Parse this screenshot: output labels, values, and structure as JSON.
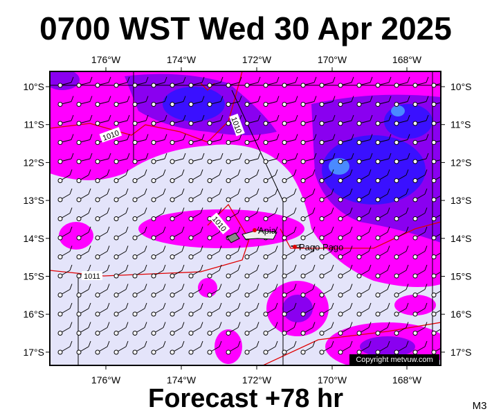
{
  "header": {
    "title": "0700 WST Wed 30 Apr 2025"
  },
  "map": {
    "longitude_labels": [
      "176°W",
      "174°W",
      "172°W",
      "170°W",
      "168°W"
    ],
    "latitude_labels": [
      "10°S",
      "11°S",
      "12°S",
      "13°S",
      "14°S",
      "15°S",
      "16°S",
      "17°S"
    ],
    "places": [
      {
        "label": "Apia"
      },
      {
        "label": "Pago Pago"
      }
    ],
    "isobar_labels": [
      "1010",
      "1010",
      "1010",
      "1011"
    ],
    "copyright": "Copyright metvuw.com"
  },
  "footer": {
    "forecast": "Forecast +78 hr",
    "model": "M3"
  }
}
